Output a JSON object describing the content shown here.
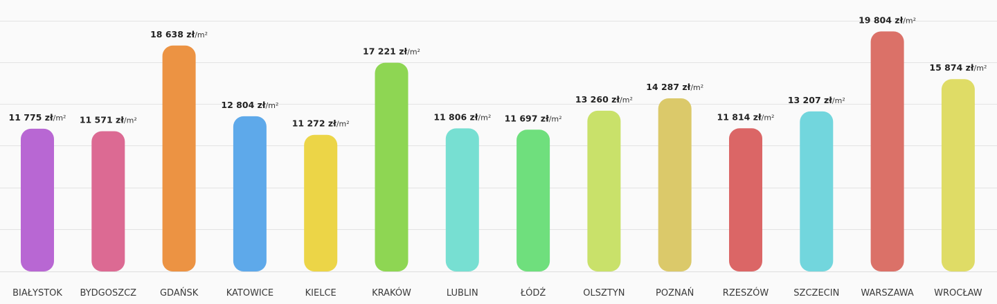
{
  "chart_data": {
    "type": "bar",
    "title": "",
    "xlabel": "",
    "ylabel": "",
    "ylim": [
      0,
      20000
    ],
    "grid": true,
    "unit_currency": "zł",
    "unit_area": "/m²",
    "categories": [
      "BIAŁYSTOK",
      "BYDGOSZCZ",
      "GDAŃSK",
      "KATOWICE",
      "KIELCE",
      "KRAKÓW",
      "LUBLIN",
      "ŁÓDŹ",
      "OLSZTYN",
      "POZNAŃ",
      "RZESZÓW",
      "SZCZECIN",
      "WARSZAWA",
      "WROCŁAW"
    ],
    "values": [
      11775,
      11571,
      18638,
      12804,
      11272,
      17221,
      11806,
      11697,
      13260,
      14287,
      11814,
      13207,
      19804,
      15874
    ],
    "value_labels": [
      "11 775",
      "11 571",
      "18 638",
      "12 804",
      "11 272",
      "17 221",
      "11 806",
      "11 697",
      "13 260",
      "14 287",
      "11 814",
      "13 207",
      "19 804",
      "15 874"
    ],
    "colors": [
      "#b867d3",
      "#dc6a93",
      "#ec9343",
      "#5ea9ea",
      "#ecd547",
      "#8ed653",
      "#77dfd2",
      "#6fdf7d",
      "#c9e16a",
      "#dbc96a",
      "#db6666",
      "#72d6dd",
      "#db7168",
      "#dfdc66"
    ]
  }
}
